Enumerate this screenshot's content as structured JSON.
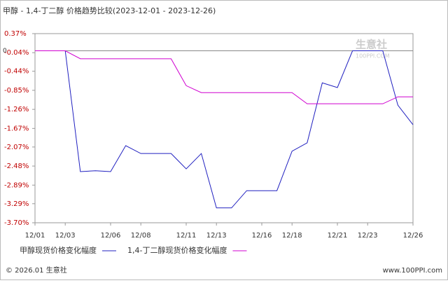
{
  "chart_data": {
    "type": "line",
    "title": "甲醇 - 1,4-丁二醇 价格趋势比较(2023-12-01 - 2023-12-26)",
    "x": [
      1,
      2,
      3,
      4,
      5,
      6,
      7,
      8,
      9,
      10,
      11,
      12,
      13,
      14,
      15,
      16,
      17,
      18,
      19,
      20,
      21,
      22,
      23,
      24,
      25,
      26
    ],
    "xlim": [
      1,
      26
    ],
    "xticks": [
      {
        "value": 1,
        "label": "12/01"
      },
      {
        "value": 3,
        "label": "12/03"
      },
      {
        "value": 6,
        "label": "12/06"
      },
      {
        "value": 8,
        "label": "12/08"
      },
      {
        "value": 11,
        "label": "12/11"
      },
      {
        "value": 13,
        "label": "12/13"
      },
      {
        "value": 16,
        "label": "12/16"
      },
      {
        "value": 18,
        "label": "12/18"
      },
      {
        "value": 21,
        "label": "12/21"
      },
      {
        "value": 23,
        "label": "12/23"
      },
      {
        "value": 26,
        "label": "12/26"
      }
    ],
    "ylim": [
      -3.7,
      0.37
    ],
    "yticks": [
      {
        "value": 0.37,
        "label": "0.37%"
      },
      {
        "value": -0.04,
        "label": "-0.04%"
      },
      {
        "value": -0.44,
        "label": "-0.44%"
      },
      {
        "value": -0.85,
        "label": "-0.85%"
      },
      {
        "value": -1.26,
        "label": "-1.26%"
      },
      {
        "value": -1.67,
        "label": "-1.67%"
      },
      {
        "value": -2.07,
        "label": "-2.07%"
      },
      {
        "value": -2.48,
        "label": "-2.48%"
      },
      {
        "value": -2.89,
        "label": "-2.89%"
      },
      {
        "value": -3.29,
        "label": "-3.29%"
      },
      {
        "value": -3.7,
        "label": "-3.70%"
      }
    ],
    "zero_tick": {
      "value": 0,
      "label": "0"
    },
    "series": [
      {
        "name": "甲醇现货价格变化幅度",
        "color": "#2020c0",
        "values": [
          0,
          0,
          0,
          -2.6,
          -2.58,
          -2.6,
          -2.04,
          -2.21,
          -2.21,
          -2.21,
          -2.54,
          -2.21,
          -3.38,
          -3.38,
          -3.01,
          -3.01,
          -3.01,
          -2.16,
          -1.98,
          -0.69,
          -0.79,
          0,
          0,
          0,
          -1.17,
          -1.59
        ]
      },
      {
        "name": "1,4-丁二醇现货价格变化幅度",
        "color": "#d000d0",
        "values": [
          0,
          0,
          0,
          -0.17,
          -0.17,
          -0.17,
          -0.17,
          -0.17,
          -0.17,
          -0.17,
          -0.75,
          -0.9,
          -0.9,
          -0.9,
          -0.9,
          -0.9,
          -0.9,
          -0.9,
          -1.14,
          -1.14,
          -1.14,
          -1.14,
          -1.14,
          -1.14,
          -0.99,
          -0.99
        ]
      }
    ],
    "watermark": "生意社",
    "watermark_sub": "100PPI.COM",
    "footer_left": "© 2026.01 生意社",
    "footer_right": "www.100PPI.com"
  }
}
